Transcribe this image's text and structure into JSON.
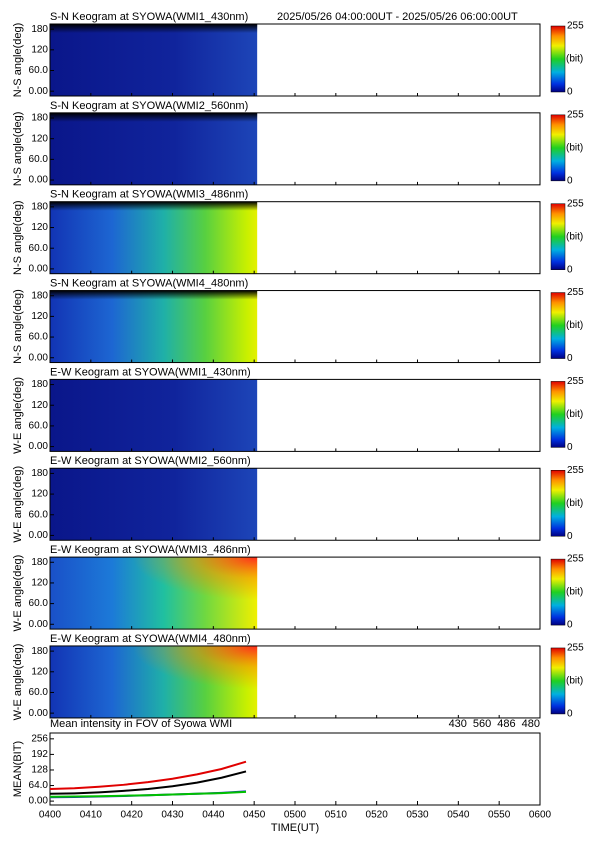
{
  "chart_data": [
    {
      "type": "keogram",
      "title": "S-N Keogram at SYOWA(WMI1_430nm)",
      "subtitle": "2025/05/26 04:00:00UT - 2025/05/26 06:00:00UT",
      "ylabel": "N-S angle(deg)",
      "ylim": [
        -14,
        195
      ],
      "yticks": [
        {
          "value": 0,
          "label": "0.00"
        },
        {
          "value": 60,
          "label": "60.0"
        },
        120,
        180
      ],
      "clim": [
        0,
        255
      ],
      "cticks": [
        0,
        255
      ],
      "clabel": "(bit)"
    },
    {
      "type": "keogram",
      "title": "S-N Keogram at SYOWA(WMI2_560nm)",
      "ylabel": "N-S angle(deg)",
      "ylim": [
        -14,
        195
      ],
      "yticks": [
        {
          "value": 0,
          "label": "0.00"
        },
        {
          "value": 60,
          "label": "60.0"
        },
        120,
        180
      ],
      "clim": [
        0,
        255
      ],
      "cticks": [
        0,
        255
      ],
      "clabel": "(bit)"
    },
    {
      "type": "keogram",
      "title": "S-N Keogram at SYOWA(WMI3_486nm)",
      "ylabel": "N-S angle(deg)",
      "ylim": [
        -14,
        195
      ],
      "yticks": [
        {
          "value": 0,
          "label": "0.00"
        },
        {
          "value": 60,
          "label": "60.0"
        },
        120,
        180
      ],
      "clim": [
        0,
        255
      ],
      "cticks": [
        0,
        255
      ],
      "clabel": "(bit)"
    },
    {
      "type": "keogram",
      "title": "S-N Keogram at SYOWA(WMI4_480nm)",
      "ylabel": "N-S angle(deg)",
      "ylim": [
        -14,
        195
      ],
      "yticks": [
        {
          "value": 0,
          "label": "0.00"
        },
        {
          "value": 60,
          "label": "60.0"
        },
        120,
        180
      ],
      "clim": [
        0,
        255
      ],
      "cticks": [
        0,
        255
      ],
      "clabel": "(bit)"
    },
    {
      "type": "keogram",
      "title": "E-W Keogram at SYOWA(WMI1_430nm)",
      "ylabel": "W-E angle(deg)",
      "ylim": [
        -14,
        195
      ],
      "yticks": [
        {
          "value": 0,
          "label": "0.00"
        },
        {
          "value": 60,
          "label": "60.0"
        },
        120,
        180
      ],
      "clim": [
        0,
        255
      ],
      "cticks": [
        0,
        255
      ],
      "clabel": "(bit)"
    },
    {
      "type": "keogram",
      "title": "E-W Keogram at SYOWA(WMI2_560nm)",
      "ylabel": "W-E angle(deg)",
      "ylim": [
        -14,
        195
      ],
      "yticks": [
        {
          "value": 0,
          "label": "0.00"
        },
        {
          "value": 60,
          "label": "60.0"
        },
        120,
        180
      ],
      "clim": [
        0,
        255
      ],
      "cticks": [
        0,
        255
      ],
      "clabel": "(bit)"
    },
    {
      "type": "keogram",
      "title": "E-W Keogram at SYOWA(WMI3_486nm)",
      "ylabel": "W-E angle(deg)",
      "ylim": [
        -14,
        195
      ],
      "yticks": [
        {
          "value": 0,
          "label": "0.00"
        },
        {
          "value": 60,
          "label": "60.0"
        },
        120,
        180
      ],
      "clim": [
        0,
        255
      ],
      "cticks": [
        0,
        255
      ],
      "clabel": "(bit)"
    },
    {
      "type": "keogram",
      "title": "E-W Keogram at SYOWA(WMI4_480nm)",
      "ylabel": "W-E angle(deg)",
      "ylim": [
        -14,
        195
      ],
      "yticks": [
        {
          "value": 0,
          "label": "0.00"
        },
        {
          "value": 60,
          "label": "60.0"
        },
        120,
        180
      ],
      "clim": [
        0,
        255
      ],
      "cticks": [
        0,
        255
      ],
      "clabel": "(bit)"
    },
    {
      "type": "line",
      "title": "Mean intensity in FOV of Syowa WMI",
      "ylabel": "MEAN(BIT)",
      "xlabel": "TIME(UT)",
      "x": [
        0,
        6,
        12,
        18,
        24,
        30,
        36,
        42,
        48
      ],
      "xlim": [
        0,
        120
      ],
      "xticks": [
        {
          "value": 0,
          "label": "0400"
        },
        {
          "value": 10,
          "label": "0410"
        },
        {
          "value": 20,
          "label": "0420"
        },
        {
          "value": 30,
          "label": "0430"
        },
        {
          "value": 40,
          "label": "0440"
        },
        {
          "value": 50,
          "label": "0450"
        },
        {
          "value": 60,
          "label": "0500"
        },
        {
          "value": 70,
          "label": "0510"
        },
        {
          "value": 80,
          "label": "0520"
        },
        {
          "value": 90,
          "label": "0530"
        },
        {
          "value": 100,
          "label": "0540"
        },
        {
          "value": 110,
          "label": "0550"
        },
        {
          "value": 120,
          "label": "0600"
        }
      ],
      "ylim": [
        -16,
        280
      ],
      "yticks": [
        {
          "value": 0,
          "label": "0.00"
        },
        {
          "value": 64,
          "label": "64.0"
        },
        128,
        192,
        256
      ],
      "series": [
        {
          "name": "430",
          "color": "#2020c8",
          "values": [
            16,
            17,
            19,
            21,
            24,
            27,
            30,
            34,
            40
          ]
        },
        {
          "name": "560",
          "color": "#00c000",
          "values": [
            18,
            19,
            20,
            22,
            24,
            27,
            30,
            33,
            38
          ]
        },
        {
          "name": "486",
          "color": "#e00000",
          "values": [
            50,
            53,
            59,
            67,
            78,
            92,
            110,
            132,
            162
          ]
        },
        {
          "name": "480",
          "color": "#000000",
          "values": [
            30,
            32,
            36,
            42,
            50,
            61,
            76,
            96,
            122
          ]
        }
      ]
    }
  ]
}
